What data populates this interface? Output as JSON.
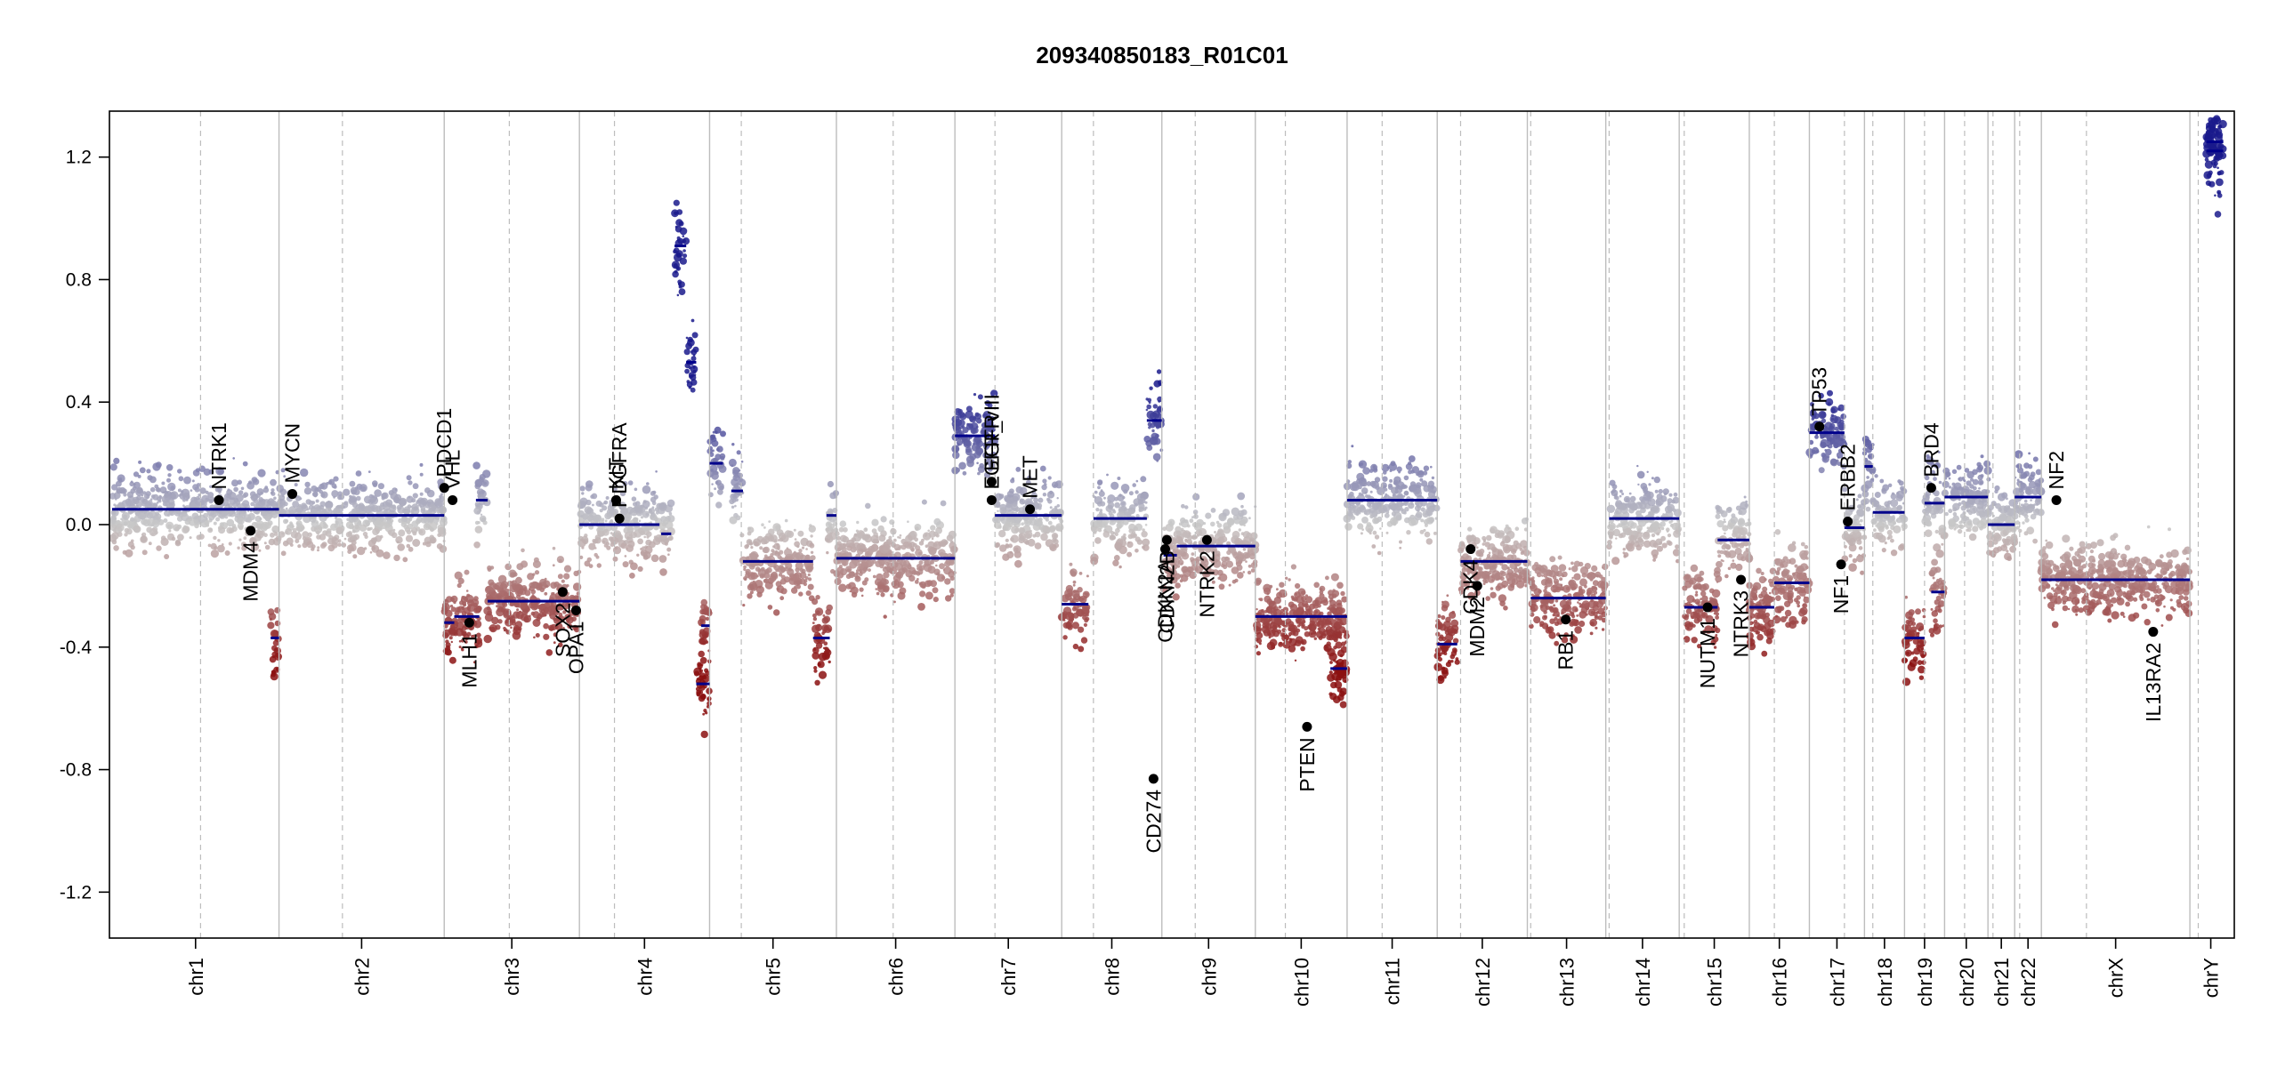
{
  "chart_data": {
    "type": "scatter",
    "title": "209340850183_R01C01",
    "xlabel": "",
    "ylabel": "",
    "ylim": [
      -1.35,
      1.35
    ],
    "yticks": [
      -1.2,
      -0.8,
      -0.4,
      0.0,
      0.4,
      0.8,
      1.2
    ],
    "ytick_labels": [
      "-1.2",
      "-0.8",
      "-0.4",
      "0.0",
      "0.4",
      "0.8",
      "1.2"
    ],
    "colors": {
      "gain": "#1a1a8c",
      "loss": "#8b1010",
      "neutral": "#c8c8c8",
      "segment": "#00008b",
      "gene": "#000000",
      "chr_line": "#bdbdbd"
    },
    "chromosomes": [
      {
        "name": "chr1",
        "start": 0.0,
        "end": 1.0,
        "centromere": 0.53
      },
      {
        "name": "chr2",
        "start": 1.0,
        "end": 1.99,
        "centromere": 1.38
      },
      {
        "name": "chr3",
        "start": 1.99,
        "end": 2.8,
        "centromere": 2.38
      },
      {
        "name": "chr4",
        "start": 2.8,
        "end": 3.58,
        "centromere": 3.01
      },
      {
        "name": "chr5",
        "start": 3.58,
        "end": 4.34,
        "centromere": 3.77
      },
      {
        "name": "chr6",
        "start": 4.34,
        "end": 5.05,
        "centromere": 4.68
      },
      {
        "name": "chr7",
        "start": 5.05,
        "end": 5.69,
        "centromere": 5.29
      },
      {
        "name": "chr8",
        "start": 5.69,
        "end": 6.29,
        "centromere": 5.88
      },
      {
        "name": "chr9",
        "start": 6.29,
        "end": 6.85,
        "centromere": 6.49
      },
      {
        "name": "chr10",
        "start": 6.85,
        "end": 7.4,
        "centromere": 7.03
      },
      {
        "name": "chr11",
        "start": 7.4,
        "end": 7.94,
        "centromere": 7.61
      },
      {
        "name": "chr12",
        "start": 7.94,
        "end": 8.48,
        "centromere": 8.08
      },
      {
        "name": "chr13",
        "start": 8.48,
        "end": 8.95,
        "centromere": 8.5
      },
      {
        "name": "chr14",
        "start": 8.95,
        "end": 9.39,
        "centromere": 8.97
      },
      {
        "name": "chr15",
        "start": 9.39,
        "end": 9.81,
        "centromere": 9.42
      },
      {
        "name": "chr16",
        "start": 9.81,
        "end": 10.17,
        "centromere": 9.96
      },
      {
        "name": "chr17",
        "start": 10.17,
        "end": 10.5,
        "centromere": 10.38
      },
      {
        "name": "chr18",
        "start": 10.5,
        "end": 10.74,
        "centromere": 10.55
      },
      {
        "name": "chr19",
        "start": 10.74,
        "end": 10.98,
        "centromere": 10.86
      },
      {
        "name": "chr20",
        "start": 10.98,
        "end": 11.24,
        "centromere": 11.1
      },
      {
        "name": "chr21",
        "start": 11.24,
        "end": 11.4,
        "centromere": 11.27
      },
      {
        "name": "chr22",
        "start": 11.4,
        "end": 11.56,
        "centromere": 11.43
      },
      {
        "name": "chrX",
        "start": 11.56,
        "end": 12.45,
        "centromere": 11.83
      },
      {
        "name": "chrY",
        "start": 12.45,
        "end": 12.7,
        "centromere": 12.5
      }
    ],
    "segments": [
      {
        "x0": 0.0,
        "x1": 1.0,
        "y": 0.05
      },
      {
        "x0": 0.95,
        "x1": 1.0,
        "y": -0.37
      },
      {
        "x0": 1.0,
        "x1": 1.99,
        "y": 0.03
      },
      {
        "x0": 1.99,
        "x1": 2.05,
        "y": -0.32
      },
      {
        "x0": 2.05,
        "x1": 2.2,
        "y": -0.3
      },
      {
        "x0": 2.18,
        "x1": 2.25,
        "y": 0.08
      },
      {
        "x0": 2.25,
        "x1": 2.8,
        "y": -0.25
      },
      {
        "x0": 2.8,
        "x1": 3.28,
        "y": 0.0
      },
      {
        "x0": 3.29,
        "x1": 3.35,
        "y": -0.03
      },
      {
        "x0": 3.37,
        "x1": 3.44,
        "y": 0.91
      },
      {
        "x0": 3.44,
        "x1": 3.5,
        "y": 0.53
      },
      {
        "x0": 3.5,
        "x1": 3.58,
        "y": -0.52
      },
      {
        "x0": 3.53,
        "x1": 3.58,
        "y": -0.33
      },
      {
        "x0": 3.58,
        "x1": 3.66,
        "y": 0.2
      },
      {
        "x0": 3.71,
        "x1": 3.78,
        "y": 0.11
      },
      {
        "x0": 3.78,
        "x1": 4.2,
        "y": -0.12
      },
      {
        "x0": 4.2,
        "x1": 4.3,
        "y": -0.37
      },
      {
        "x0": 4.28,
        "x1": 4.34,
        "y": 0.03
      },
      {
        "x0": 4.34,
        "x1": 5.05,
        "y": -0.11
      },
      {
        "x0": 5.05,
        "x1": 5.29,
        "y": 0.29
      },
      {
        "x0": 5.29,
        "x1": 5.69,
        "y": 0.03
      },
      {
        "x0": 5.69,
        "x1": 5.85,
        "y": -0.26
      },
      {
        "x0": 5.88,
        "x1": 6.2,
        "y": 0.02
      },
      {
        "x0": 6.2,
        "x1": 6.29,
        "y": 0.34
      },
      {
        "x0": 6.3,
        "x1": 6.38,
        "y": -0.1
      },
      {
        "x0": 6.38,
        "x1": 6.85,
        "y": -0.07
      },
      {
        "x0": 6.85,
        "x1": 7.4,
        "y": -0.3
      },
      {
        "x0": 7.3,
        "x1": 7.4,
        "y": -0.47
      },
      {
        "x0": 7.4,
        "x1": 7.94,
        "y": 0.08
      },
      {
        "x0": 7.94,
        "x1": 8.06,
        "y": -0.39
      },
      {
        "x0": 8.08,
        "x1": 8.48,
        "y": -0.12
      },
      {
        "x0": 8.5,
        "x1": 8.95,
        "y": -0.24
      },
      {
        "x0": 8.97,
        "x1": 9.39,
        "y": 0.02
      },
      {
        "x0": 9.42,
        "x1": 9.62,
        "y": -0.27
      },
      {
        "x0": 9.62,
        "x1": 9.81,
        "y": -0.05
      },
      {
        "x0": 9.81,
        "x1": 9.96,
        "y": -0.27
      },
      {
        "x0": 9.96,
        "x1": 10.17,
        "y": -0.19
      },
      {
        "x0": 10.17,
        "x1": 10.38,
        "y": 0.3
      },
      {
        "x0": 10.38,
        "x1": 10.5,
        "y": -0.01
      },
      {
        "x0": 10.5,
        "x1": 10.55,
        "y": 0.19
      },
      {
        "x0": 10.55,
        "x1": 10.74,
        "y": 0.04
      },
      {
        "x0": 10.74,
        "x1": 10.86,
        "y": -0.37
      },
      {
        "x0": 10.86,
        "x1": 10.98,
        "y": 0.07
      },
      {
        "x0": 10.9,
        "x1": 10.98,
        "y": -0.22
      },
      {
        "x0": 10.98,
        "x1": 11.24,
        "y": 0.09
      },
      {
        "x0": 11.24,
        "x1": 11.4,
        "y": 0.0
      },
      {
        "x0": 11.4,
        "x1": 11.56,
        "y": 0.09
      },
      {
        "x0": 11.56,
        "x1": 12.45,
        "y": -0.18
      },
      {
        "x0": 12.55,
        "x1": 12.65,
        "y": 1.22
      },
      {
        "x0": 12.55,
        "x1": 12.65,
        "y": 1.25
      }
    ],
    "genes": [
      {
        "name": "NTRK1",
        "x": 0.64,
        "y": 0.08,
        "label_pos": "above"
      },
      {
        "name": "MDM4",
        "x": 0.83,
        "y": -0.02,
        "label_pos": "below"
      },
      {
        "name": "MYCN",
        "x": 1.08,
        "y": 0.1,
        "label_pos": "above"
      },
      {
        "name": "PDCD1",
        "x": 1.99,
        "y": 0.12,
        "label_pos": "above"
      },
      {
        "name": "VHL",
        "x": 2.04,
        "y": 0.08,
        "label_pos": "above"
      },
      {
        "name": "MLH1",
        "x": 2.14,
        "y": -0.32,
        "label_pos": "below"
      },
      {
        "name": "SOX2",
        "x": 2.7,
        "y": -0.22,
        "label_pos": "below"
      },
      {
        "name": "OPA1",
        "x": 2.78,
        "y": -0.28,
        "label_pos": "below"
      },
      {
        "name": "KIT",
        "x": 3.02,
        "y": 0.08,
        "label_pos": "above"
      },
      {
        "name": "PDGFRA",
        "x": 3.04,
        "y": 0.02,
        "label_pos": "above"
      },
      {
        "name": "EGFR",
        "x": 5.27,
        "y": 0.14,
        "label_pos": "above"
      },
      {
        "name": "EGFR_vIII",
        "x": 5.27,
        "y": 0.08,
        "label_pos": "above"
      },
      {
        "name": "MET",
        "x": 5.5,
        "y": 0.05,
        "label_pos": "above"
      },
      {
        "name": "CD274",
        "x": 6.24,
        "y": -0.83,
        "label_pos": "below"
      },
      {
        "name": "CDKN2A",
        "x": 6.31,
        "y": -0.08,
        "label_pos": "below"
      },
      {
        "name": "CDKN2B",
        "x": 6.32,
        "y": -0.05,
        "label_pos": "below"
      },
      {
        "name": "NTRK2",
        "x": 6.56,
        "y": -0.05,
        "label_pos": "below"
      },
      {
        "name": "PTEN",
        "x": 7.16,
        "y": -0.66,
        "label_pos": "below"
      },
      {
        "name": "CDK4",
        "x": 8.14,
        "y": -0.08,
        "label_pos": "below"
      },
      {
        "name": "MDM2",
        "x": 8.18,
        "y": -0.2,
        "label_pos": "below"
      },
      {
        "name": "RB1",
        "x": 8.71,
        "y": -0.31,
        "label_pos": "below"
      },
      {
        "name": "NUTM1",
        "x": 9.56,
        "y": -0.27,
        "label_pos": "below"
      },
      {
        "name": "NTRK3",
        "x": 9.76,
        "y": -0.18,
        "label_pos": "below"
      },
      {
        "name": "TP53",
        "x": 10.23,
        "y": 0.32,
        "label_pos": "above"
      },
      {
        "name": "NF1",
        "x": 10.36,
        "y": -0.13,
        "label_pos": "below"
      },
      {
        "name": "ERBB2",
        "x": 10.4,
        "y": 0.01,
        "label_pos": "above"
      },
      {
        "name": "BRD4",
        "x": 10.9,
        "y": 0.12,
        "label_pos": "above"
      },
      {
        "name": "NF2",
        "x": 11.65,
        "y": 0.08,
        "label_pos": "above"
      },
      {
        "name": "IL13RA2",
        "x": 12.23,
        "y": -0.35,
        "label_pos": "below"
      }
    ]
  }
}
